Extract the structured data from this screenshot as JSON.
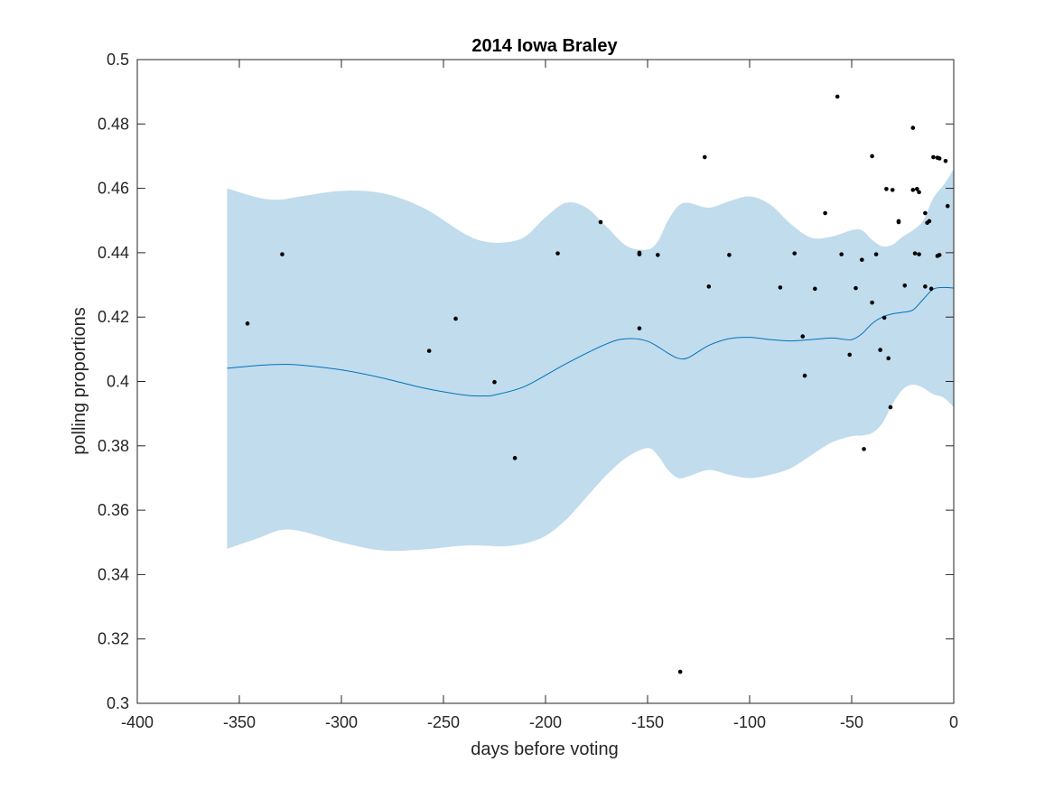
{
  "chart_data": {
    "type": "line",
    "title": "2014 Iowa Braley",
    "xlabel": "days before voting",
    "ylabel": "polling proportions",
    "xlim": [
      -400,
      0
    ],
    "ylim": [
      0.3,
      0.5
    ],
    "xticks": [
      -400,
      -350,
      -300,
      -250,
      -200,
      -150,
      -100,
      -50,
      0
    ],
    "xtick_labels": [
      "-400",
      "-350",
      "-300",
      "-250",
      "-200",
      "-150",
      "-100",
      "-50",
      "0"
    ],
    "yticks": [
      0.3,
      0.32,
      0.34,
      0.36,
      0.38,
      0.4,
      0.42,
      0.44,
      0.46,
      0.48,
      0.5
    ],
    "ytick_labels": [
      "0.3",
      "0.32",
      "0.34",
      "0.36",
      "0.38",
      "0.4",
      "0.42",
      "0.44",
      "0.46",
      "0.48",
      "0.5"
    ],
    "grid": false,
    "colors": {
      "band": "#c1dcec",
      "line": "#0072bd",
      "points": "#000000"
    },
    "series": [
      {
        "type": "line",
        "x": [
          -356,
          -340,
          -330,
          -320,
          -300,
          -280,
          -260,
          -240,
          -230,
          -225,
          -210,
          -190,
          -170,
          -160,
          -150,
          -140,
          -135,
          -130,
          -120,
          -110,
          -100,
          -90,
          -80,
          -70,
          -60,
          -55,
          -50,
          -45,
          -40,
          -35,
          -30,
          -25,
          -20,
          -15,
          -10,
          -5,
          0
        ],
        "y": [
          0.4041,
          0.405,
          0.4053,
          0.4051,
          0.4036,
          0.4011,
          0.398,
          0.3958,
          0.3955,
          0.3958,
          0.3985,
          0.4055,
          0.4117,
          0.4133,
          0.4125,
          0.4088,
          0.4072,
          0.4074,
          0.4112,
          0.4133,
          0.4137,
          0.413,
          0.4126,
          0.413,
          0.4135,
          0.4132,
          0.413,
          0.4148,
          0.418,
          0.42,
          0.421,
          0.4215,
          0.4222,
          0.4255,
          0.4287,
          0.4292,
          0.429
        ]
      },
      {
        "type": "band",
        "x": [
          -356,
          -340,
          -330,
          -320,
          -300,
          -280,
          -260,
          -240,
          -230,
          -220,
          -210,
          -200,
          -190,
          -180,
          -170,
          -160,
          -150,
          -145,
          -140,
          -135,
          -130,
          -120,
          -110,
          -100,
          -90,
          -80,
          -70,
          -60,
          -50,
          -45,
          -40,
          -35,
          -30,
          -25,
          -20,
          -15,
          -10,
          -5,
          0
        ],
        "upper": [
          0.46,
          0.457,
          0.4565,
          0.4575,
          0.4592,
          0.4585,
          0.454,
          0.446,
          0.4435,
          0.4432,
          0.445,
          0.451,
          0.4555,
          0.454,
          0.448,
          0.442,
          0.441,
          0.4435,
          0.45,
          0.4545,
          0.4555,
          0.454,
          0.456,
          0.4575,
          0.455,
          0.449,
          0.4447,
          0.445,
          0.447,
          0.447,
          0.444,
          0.442,
          0.4425,
          0.445,
          0.447,
          0.45,
          0.457,
          0.461,
          0.466
        ],
        "lower": [
          0.348,
          0.3515,
          0.3538,
          0.3535,
          0.35,
          0.3475,
          0.3478,
          0.349,
          0.349,
          0.3488,
          0.3497,
          0.352,
          0.357,
          0.364,
          0.371,
          0.3765,
          0.3793,
          0.377,
          0.3725,
          0.37,
          0.3705,
          0.3725,
          0.371,
          0.37,
          0.371,
          0.373,
          0.377,
          0.381,
          0.383,
          0.3832,
          0.384,
          0.387,
          0.393,
          0.3975,
          0.399,
          0.398,
          0.396,
          0.395,
          0.392
        ]
      },
      {
        "type": "scatter",
        "x": [
          -346,
          -329,
          -257,
          -244,
          -225,
          -215,
          -194,
          -173,
          -154,
          -154,
          -154,
          -145,
          -134,
          -122,
          -120,
          -110,
          -85,
          -78,
          -74,
          -73,
          -68,
          -63,
          -57,
          -55,
          -51,
          -48,
          -45,
          -44,
          -40,
          -40,
          -38,
          -36,
          -34,
          -33,
          -32,
          -31,
          -30,
          -27,
          -27,
          -24,
          -20,
          -20,
          -19,
          -18,
          -17,
          -17,
          -14,
          -14,
          -13,
          -12,
          -11,
          -10,
          -8,
          -8,
          -7,
          -7,
          -4,
          -3
        ],
        "y": [
          0.418,
          0.4395,
          0.4095,
          0.4195,
          0.3998,
          0.3762,
          0.4398,
          0.4495,
          0.4395,
          0.44,
          0.4165,
          0.4393,
          0.3098,
          0.4697,
          0.4295,
          0.4393,
          0.4292,
          0.4398,
          0.414,
          0.4018,
          0.4288,
          0.4523,
          0.4885,
          0.4395,
          0.4083,
          0.429,
          0.4378,
          0.379,
          0.47,
          0.4245,
          0.4395,
          0.4098,
          0.4198,
          0.4598,
          0.4072,
          0.392,
          0.4595,
          0.4495,
          0.4498,
          0.4298,
          0.4788,
          0.4595,
          0.4398,
          0.4598,
          0.4588,
          0.4395,
          0.4295,
          0.4523,
          0.4493,
          0.4498,
          0.4288,
          0.4697,
          0.4695,
          0.439,
          0.4393,
          0.4693,
          0.4685,
          0.4545
        ]
      }
    ]
  }
}
